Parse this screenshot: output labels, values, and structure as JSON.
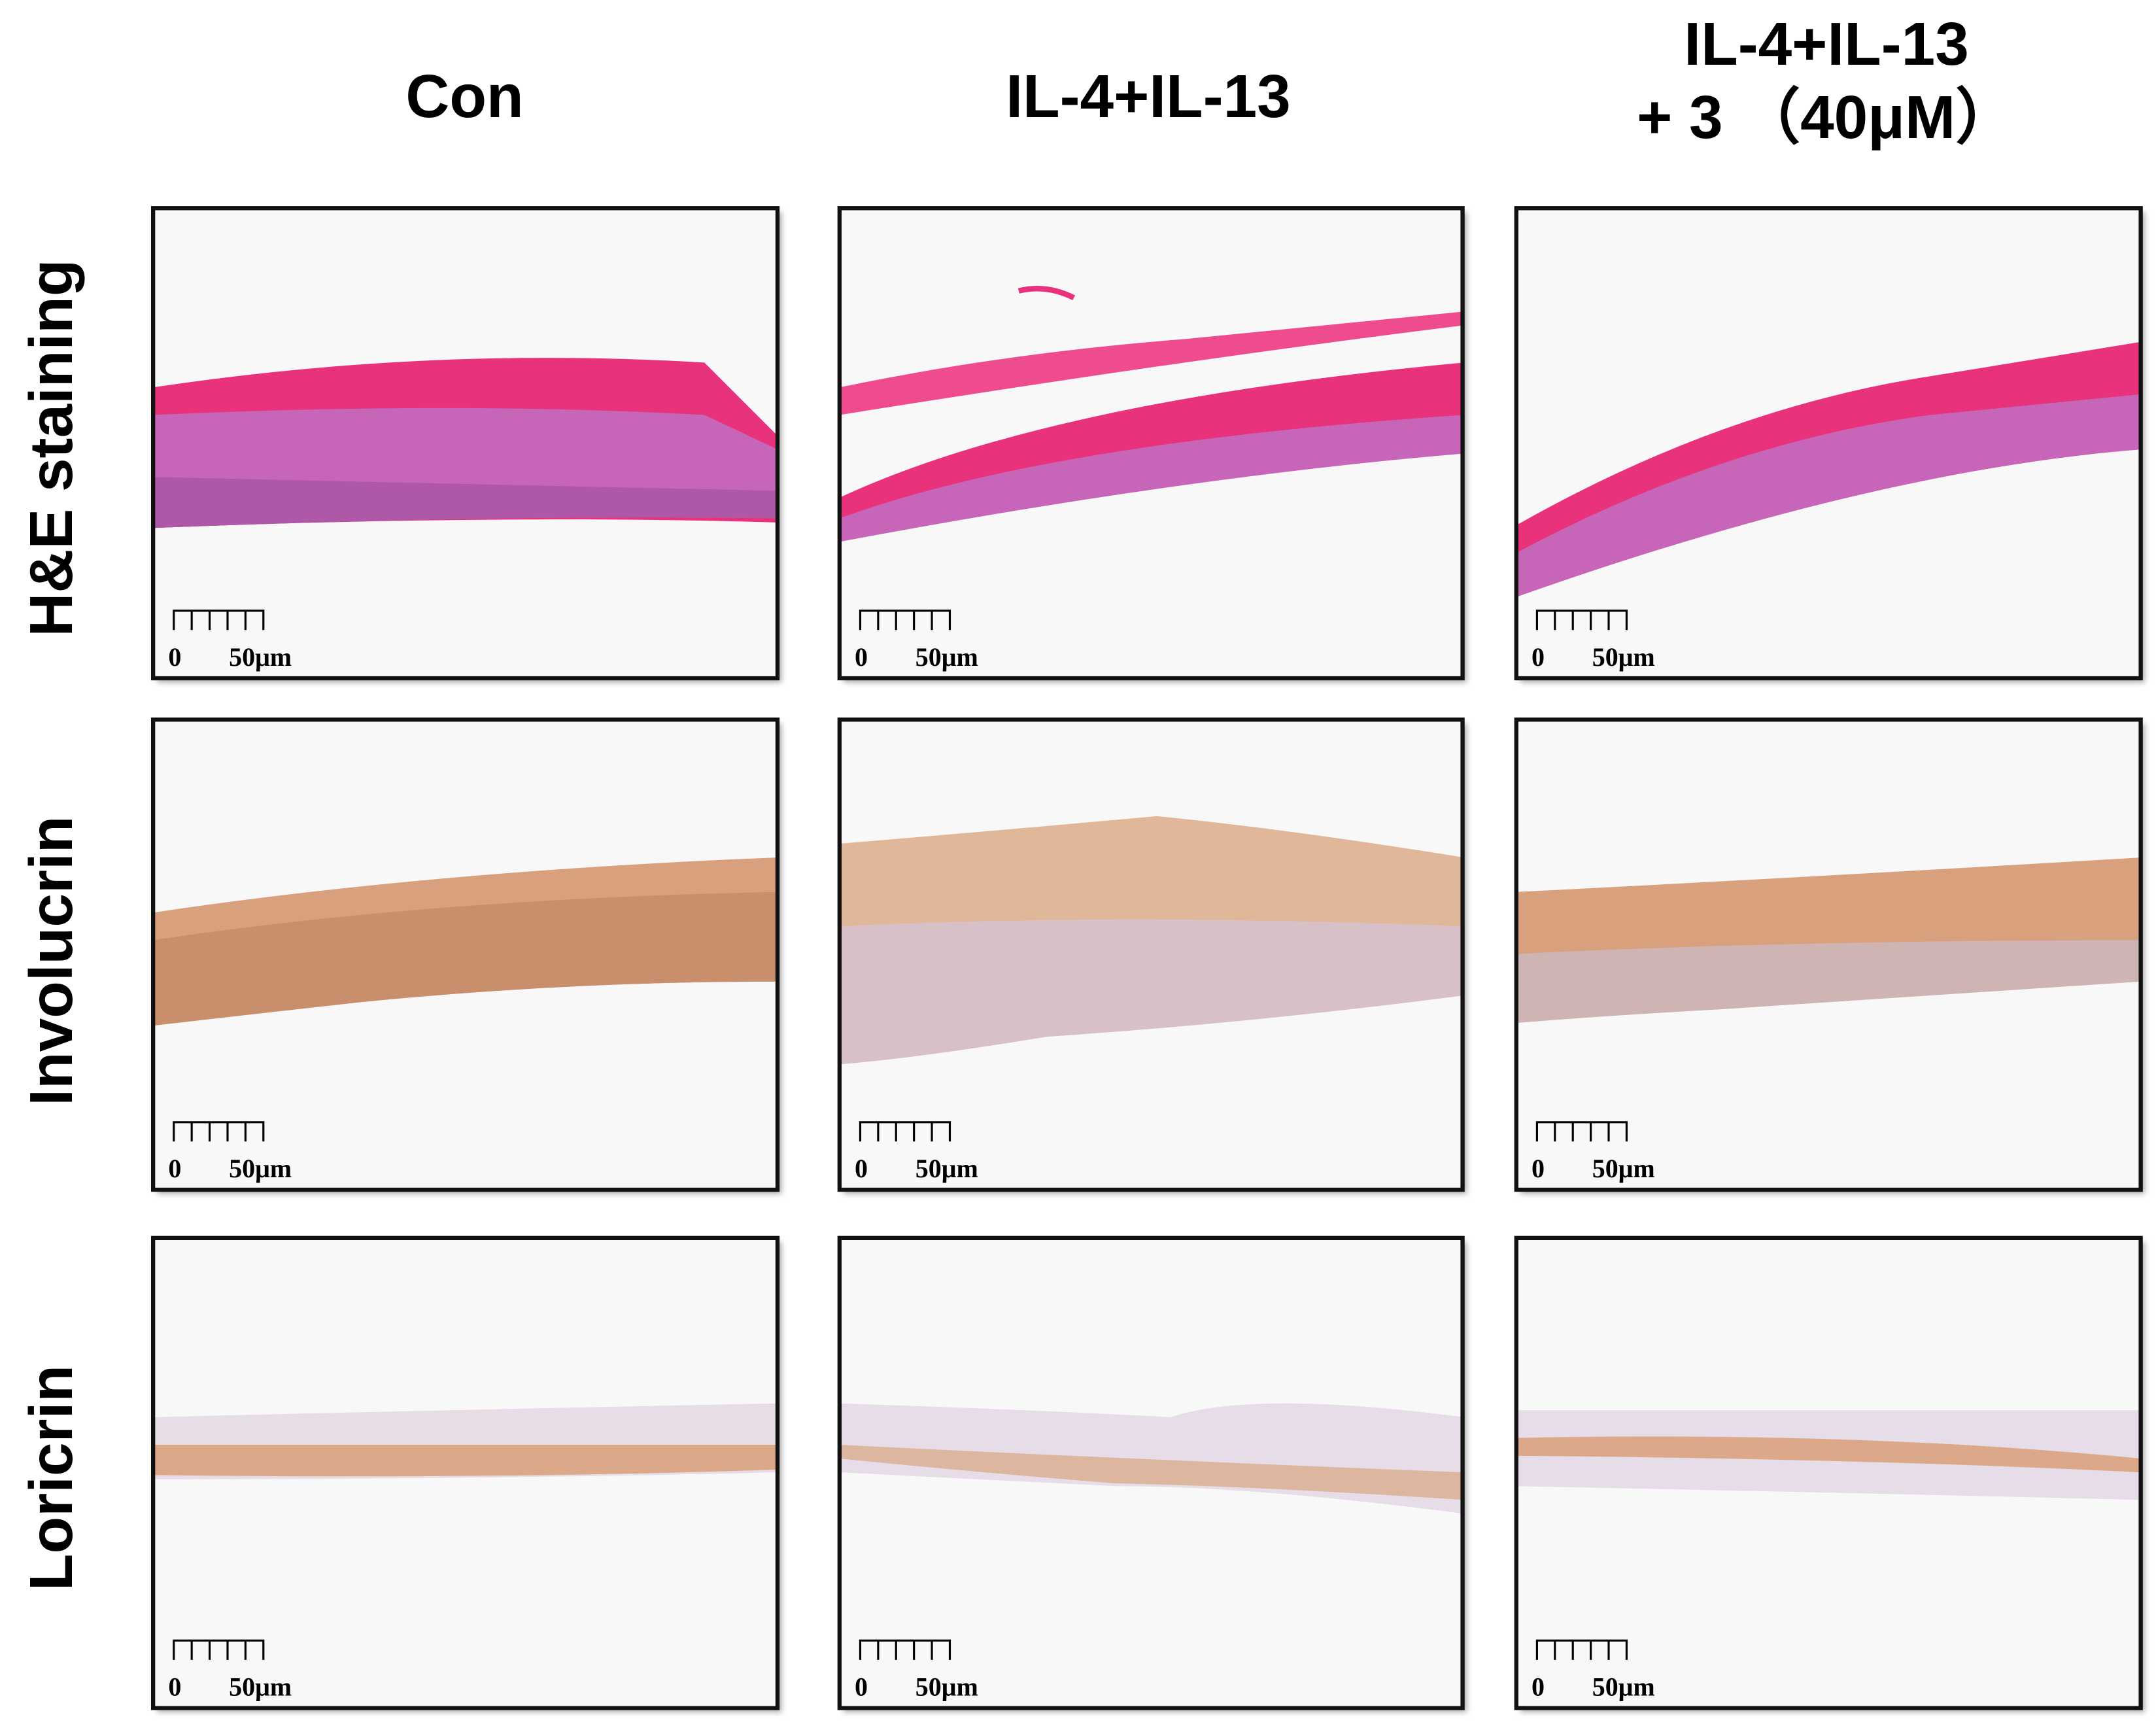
{
  "columns": [
    {
      "lines": [
        "Con"
      ]
    },
    {
      "lines": [
        "IL-4+IL-13"
      ]
    },
    {
      "lines": [
        "IL-4+IL-13",
        "+ 3 （40μM）"
      ]
    }
  ],
  "rows": [
    "H&E staining",
    "Involucrin",
    "Loricrin"
  ],
  "panels": [
    {
      "scale_bar": {
        "start": "0",
        "end": "50μm"
      }
    },
    {
      "scale_bar": {
        "start": "0",
        "end": "50μm"
      }
    },
    {
      "scale_bar": {
        "start": "0",
        "end": "50μm"
      }
    },
    {
      "scale_bar": {
        "start": "0",
        "end": "50μm"
      }
    },
    {
      "scale_bar": {
        "start": "0",
        "end": "50μm"
      }
    },
    {
      "scale_bar": {
        "start": "0",
        "end": "50μm"
      }
    },
    {
      "scale_bar": {
        "start": "0",
        "end": "50μm"
      }
    },
    {
      "scale_bar": {
        "start": "0",
        "end": "50μm"
      }
    },
    {
      "scale_bar": {
        "start": "0",
        "end": "50μm"
      }
    }
  ]
}
